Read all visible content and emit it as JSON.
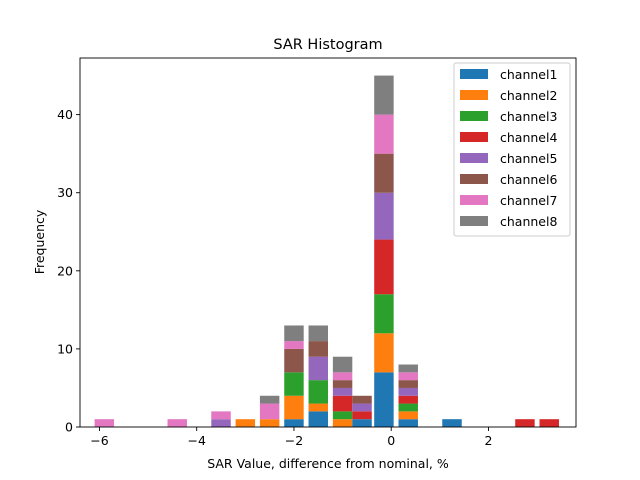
{
  "chart_data": {
    "type": "bar",
    "stacked": true,
    "title": "SAR Histogram",
    "xlabel": "SAR Value, difference from nominal, %",
    "ylabel": "Frequency",
    "xlim": [
      -6.4,
      3.8
    ],
    "ylim": [
      0,
      47.25
    ],
    "xticks": [
      -6,
      -4,
      -2,
      0,
      2
    ],
    "xtick_labels": [
      "−6",
      "−4",
      "−2",
      "0",
      "2"
    ],
    "yticks": [
      0,
      10,
      20,
      30,
      40
    ],
    "ytick_labels": [
      "0",
      "10",
      "20",
      "30",
      "40"
    ],
    "bar_width": 0.4,
    "bins": [
      -5.9,
      -4.4,
      -3.5,
      -3.0,
      -2.5,
      -2.0,
      -1.5,
      -1.0,
      -0.6,
      -0.15,
      0.35,
      1.25,
      2.75,
      3.25
    ],
    "legend_position": "top-right",
    "series": [
      {
        "name": "channel1",
        "color": "#1f77b4",
        "values": [
          0,
          0,
          0,
          0,
          0,
          1,
          2,
          0,
          1,
          7,
          1,
          1,
          0,
          0
        ]
      },
      {
        "name": "channel2",
        "color": "#ff7f0e",
        "values": [
          0,
          0,
          0,
          1,
          1,
          3,
          1,
          1,
          0,
          5,
          1,
          0,
          0,
          0
        ]
      },
      {
        "name": "channel3",
        "color": "#2ca02c",
        "values": [
          0,
          0,
          0,
          0,
          0,
          3,
          3,
          1,
          0,
          5,
          1,
          0,
          0,
          0
        ]
      },
      {
        "name": "channel4",
        "color": "#d62728",
        "values": [
          0,
          0,
          0,
          0,
          0,
          0,
          0,
          2,
          1,
          7,
          1,
          0,
          1,
          1
        ]
      },
      {
        "name": "channel5",
        "color": "#9467bd",
        "values": [
          0,
          0,
          1,
          0,
          0,
          0,
          3,
          1,
          1,
          6,
          1,
          0,
          0,
          0
        ]
      },
      {
        "name": "channel6",
        "color": "#8c564b",
        "values": [
          0,
          0,
          0,
          0,
          0,
          3,
          2,
          1,
          1,
          5,
          1,
          0,
          0,
          0
        ]
      },
      {
        "name": "channel7",
        "color": "#e377c2",
        "values": [
          1,
          1,
          1,
          0,
          2,
          1,
          0,
          1,
          0,
          5,
          1,
          0,
          0,
          0
        ]
      },
      {
        "name": "channel8",
        "color": "#7f7f7f",
        "values": [
          0,
          0,
          0,
          0,
          1,
          2,
          2,
          2,
          0,
          5,
          1,
          0,
          0,
          0
        ]
      }
    ]
  }
}
